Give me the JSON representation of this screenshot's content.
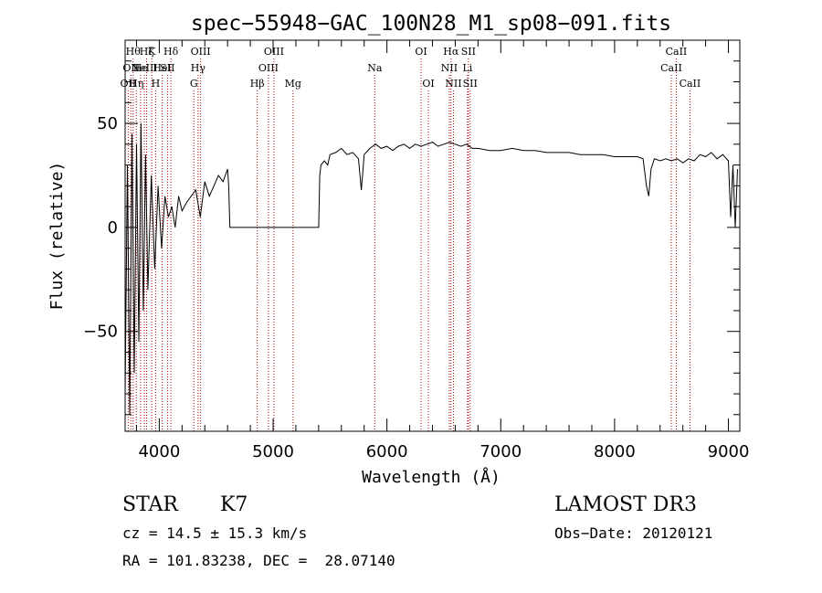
{
  "chart_data": {
    "type": "line",
    "title": "spec−55948−GAC_100N28_M1_sp08−091.fits",
    "xlabel": "Wavelength (Å)",
    "ylabel": "Flux (relative)",
    "xlim": [
      3700,
      9100
    ],
    "ylim": [
      -98,
      90
    ],
    "xticks": [
      {
        "value": 4000,
        "label": "4000"
      },
      {
        "value": 5000,
        "label": "5000"
      },
      {
        "value": 6000,
        "label": "6000"
      },
      {
        "value": 7000,
        "label": "7000"
      },
      {
        "value": 8000,
        "label": "8000"
      },
      {
        "value": 9000,
        "label": "9000"
      }
    ],
    "yticks": [
      {
        "value": 50,
        "label": "50"
      },
      {
        "value": 0,
        "label": "0"
      },
      {
        "value": -50,
        "label": "−50"
      }
    ],
    "grid": false,
    "line_color": "#000000",
    "marker_color": "#aa0000",
    "series": [
      {
        "x": [
          3700,
          3720,
          3740,
          3760,
          3780,
          3800,
          3820,
          3840,
          3860,
          3880,
          3900,
          3930,
          3960,
          3990,
          4020,
          4050,
          4080,
          4110,
          4140,
          4170,
          4200,
          4240,
          4280,
          4320,
          4360,
          4400,
          4440,
          4480,
          4520,
          4560,
          4600,
          4610,
          4620,
          4700,
          4800,
          4900,
          5000,
          5100,
          5200,
          5300,
          5400,
          5410,
          5420,
          5450,
          5480,
          5500,
          5550,
          5600,
          5650,
          5700,
          5750,
          5775,
          5790,
          5800,
          5850,
          5900,
          5950,
          6000,
          6050,
          6100,
          6150,
          6200,
          6250,
          6300,
          6350,
          6400,
          6450,
          6500,
          6550,
          6600,
          6650,
          6700,
          6750,
          6800,
          6900,
          7000,
          7100,
          7200,
          7300,
          7400,
          7500,
          7600,
          7700,
          7800,
          7900,
          8000,
          8100,
          8200,
          8250,
          8280,
          8300,
          8320,
          8350,
          8400,
          8450,
          8500,
          8550,
          8600,
          8650,
          8700,
          8750,
          8800,
          8850,
          8900,
          8950,
          9000,
          9020,
          9040,
          9060,
          9080
        ],
        "y": [
          -80,
          30,
          -90,
          45,
          -70,
          40,
          -55,
          50,
          -40,
          35,
          -30,
          25,
          -20,
          20,
          -10,
          15,
          5,
          10,
          0,
          15,
          8,
          12,
          15,
          18,
          5,
          22,
          15,
          20,
          25,
          22,
          28,
          20,
          0,
          0,
          0,
          0,
          0,
          0,
          0,
          0,
          0,
          25,
          30,
          32,
          30,
          35,
          36,
          38,
          35,
          36,
          33,
          18,
          28,
          35,
          38,
          40,
          38,
          39,
          37,
          39,
          40,
          38,
          40,
          39,
          40,
          41,
          39,
          40,
          41,
          40,
          39,
          40,
          38,
          38,
          37,
          37,
          38,
          37,
          37,
          36,
          36,
          36,
          35,
          35,
          35,
          34,
          34,
          34,
          33,
          20,
          15,
          28,
          33,
          32,
          33,
          32,
          33,
          31,
          33,
          32,
          35,
          34,
          36,
          33,
          35,
          32,
          5,
          30,
          0,
          28
        ]
      }
    ],
    "lines": [
      {
        "wl": 3727,
        "row": 2,
        "label": "OII"
      },
      {
        "wl": 3750,
        "row": 1,
        "label": "OII"
      },
      {
        "wl": 3770,
        "row": 0,
        "label": "Hθ"
      },
      {
        "wl": 3798,
        "row": 2,
        "label": "Hη"
      },
      {
        "wl": 3835,
        "row": 1,
        "label": "He"
      },
      {
        "wl": 3869,
        "row": 1,
        "label": "NeIII"
      },
      {
        "wl": 3889,
        "row": 0,
        "label": "Hζ"
      },
      {
        "wl": 3934,
        "row": 0,
        "label": "K"
      },
      {
        "wl": 3968,
        "row": 2,
        "label": "H"
      },
      {
        "wl": 4026,
        "row": 1,
        "label": "HeI"
      },
      {
        "wl": 4072,
        "row": 1,
        "label": "SII"
      },
      {
        "wl": 4102,
        "row": 0,
        "label": "Hδ"
      },
      {
        "wl": 4304,
        "row": 2,
        "label": "G"
      },
      {
        "wl": 4341,
        "row": 1,
        "label": "Hγ"
      },
      {
        "wl": 4363,
        "row": 0,
        "label": "OIII"
      },
      {
        "wl": 4861,
        "row": 2,
        "label": "Hβ"
      },
      {
        "wl": 4959,
        "row": 1,
        "label": "OIII"
      },
      {
        "wl": 5007,
        "row": 0,
        "label": "OIII"
      },
      {
        "wl": 5175,
        "row": 2,
        "label": "Mg"
      },
      {
        "wl": 5893,
        "row": 1,
        "label": "Na"
      },
      {
        "wl": 6300,
        "row": 0,
        "label": "OI"
      },
      {
        "wl": 6364,
        "row": 2,
        "label": "OI"
      },
      {
        "wl": 6548,
        "row": 1,
        "label": "NII"
      },
      {
        "wl": 6563,
        "row": 0,
        "label": "Hα"
      },
      {
        "wl": 6584,
        "row": 2,
        "label": "NII"
      },
      {
        "wl": 6708,
        "row": 1,
        "label": "Li"
      },
      {
        "wl": 6716,
        "row": 0,
        "label": "SII"
      },
      {
        "wl": 6731,
        "row": 2,
        "label": "SII"
      },
      {
        "wl": 8498,
        "row": 1,
        "label": "CaII"
      },
      {
        "wl": 8542,
        "row": 0,
        "label": "CaII"
      },
      {
        "wl": 8662,
        "row": 2,
        "label": "CaII"
      }
    ]
  },
  "info": {
    "class": "STAR",
    "subclass": "K7",
    "survey": "LAMOST DR3",
    "cz": "cz = 14.5 ± 15.3 km/s",
    "obsdate": "Obs−Date: 20120121",
    "coords": "RA = 101.83238, DEC =  28.07140"
  }
}
